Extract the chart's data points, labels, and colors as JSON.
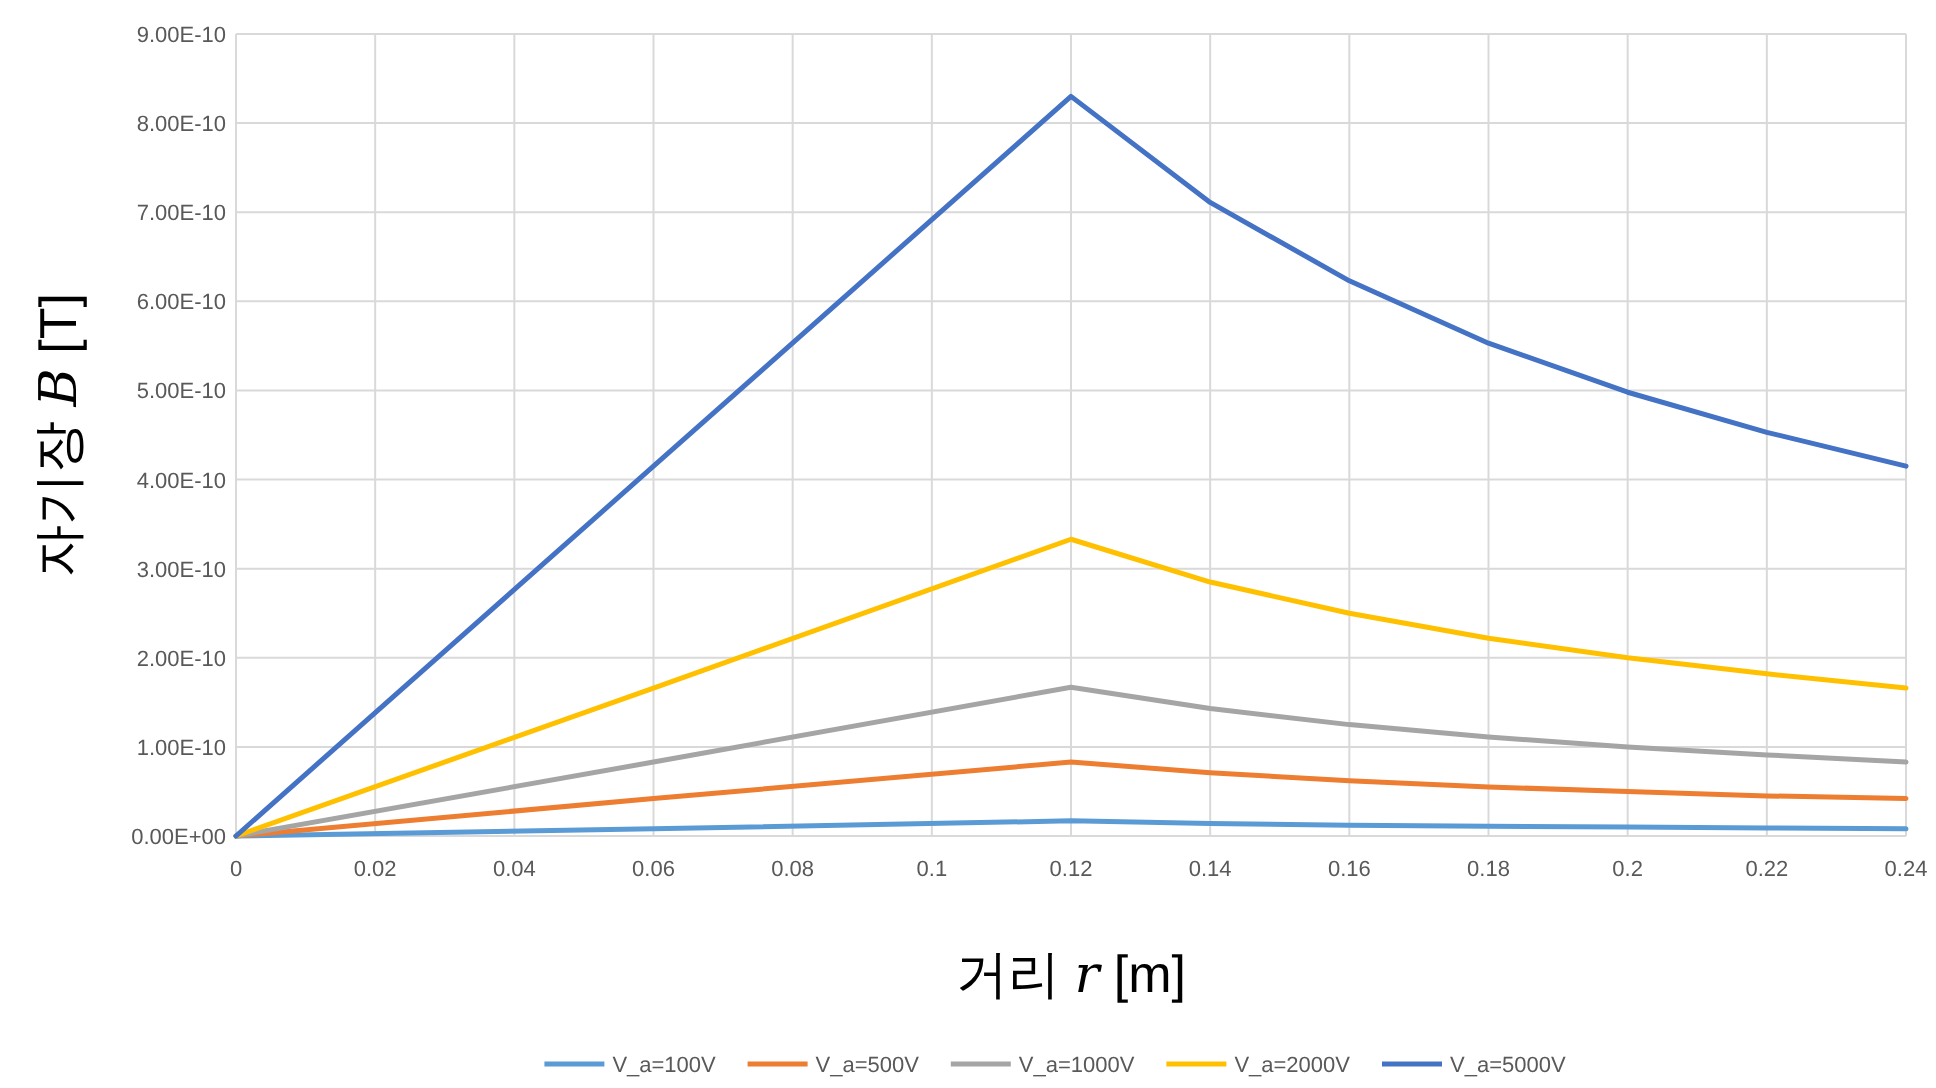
{
  "chart_data": {
    "type": "line",
    "xlabel": "거리 *r* [m]",
    "ylabel": "자기장 *B* [T]",
    "x": [
      0,
      0.06,
      0.12,
      0.14,
      0.16,
      0.18,
      0.2,
      0.22,
      0.24
    ],
    "series": [
      {
        "name": "V_a=100V",
        "color": "#5b9bd5",
        "values": [
          0,
          8e-12,
          1.7e-11,
          1.4e-11,
          1.2e-11,
          1.1e-11,
          1e-11,
          9e-12,
          8e-12
        ]
      },
      {
        "name": "V_a=500V",
        "color": "#ed7d31",
        "values": [
          0,
          4.2e-11,
          8.3e-11,
          7.1e-11,
          6.2e-11,
          5.5e-11,
          5e-11,
          4.5e-11,
          4.2e-11
        ]
      },
      {
        "name": "V_a=1000V",
        "color": "#a5a5a5",
        "values": [
          0,
          8.3e-11,
          1.67e-10,
          1.43e-10,
          1.25e-10,
          1.11e-10,
          1e-10,
          9.1e-11,
          8.3e-11
        ]
      },
      {
        "name": "V_a=2000V",
        "color": "#ffc000",
        "values": [
          0,
          1.66e-10,
          3.33e-10,
          2.85e-10,
          2.5e-10,
          2.22e-10,
          2e-10,
          1.82e-10,
          1.66e-10
        ]
      },
      {
        "name": "V_a=5000V",
        "color": "#4472c4",
        "values": [
          0,
          4.15e-10,
          8.3e-10,
          7.11e-10,
          6.23e-10,
          5.53e-10,
          4.98e-10,
          4.53e-10,
          4.15e-10
        ]
      }
    ],
    "xlim": [
      0,
      0.24
    ],
    "xticks": [
      0,
      0.02,
      0.04,
      0.06,
      0.08,
      0.1,
      0.12,
      0.14,
      0.16,
      0.18,
      0.2,
      0.22,
      0.24
    ],
    "ylim": [
      0,
      9e-10
    ],
    "yticks": [
      {
        "value": 0,
        "label": "0.00E+00"
      },
      {
        "value": 1e-10,
        "label": "1.00E-10"
      },
      {
        "value": 2e-10,
        "label": "2.00E-10"
      },
      {
        "value": 3e-10,
        "label": "3.00E-10"
      },
      {
        "value": 4e-10,
        "label": "4.00E-10"
      },
      {
        "value": 5e-10,
        "label": "5.00E-10"
      },
      {
        "value": 6e-10,
        "label": "6.00E-10"
      },
      {
        "value": 7e-10,
        "label": "7.00E-10"
      },
      {
        "value": 8e-10,
        "label": "8.00E-10"
      },
      {
        "value": 9e-10,
        "label": "9.00E-10"
      }
    ],
    "grid": true,
    "legend": "bottom",
    "marker": "none",
    "line_style": "solid"
  }
}
